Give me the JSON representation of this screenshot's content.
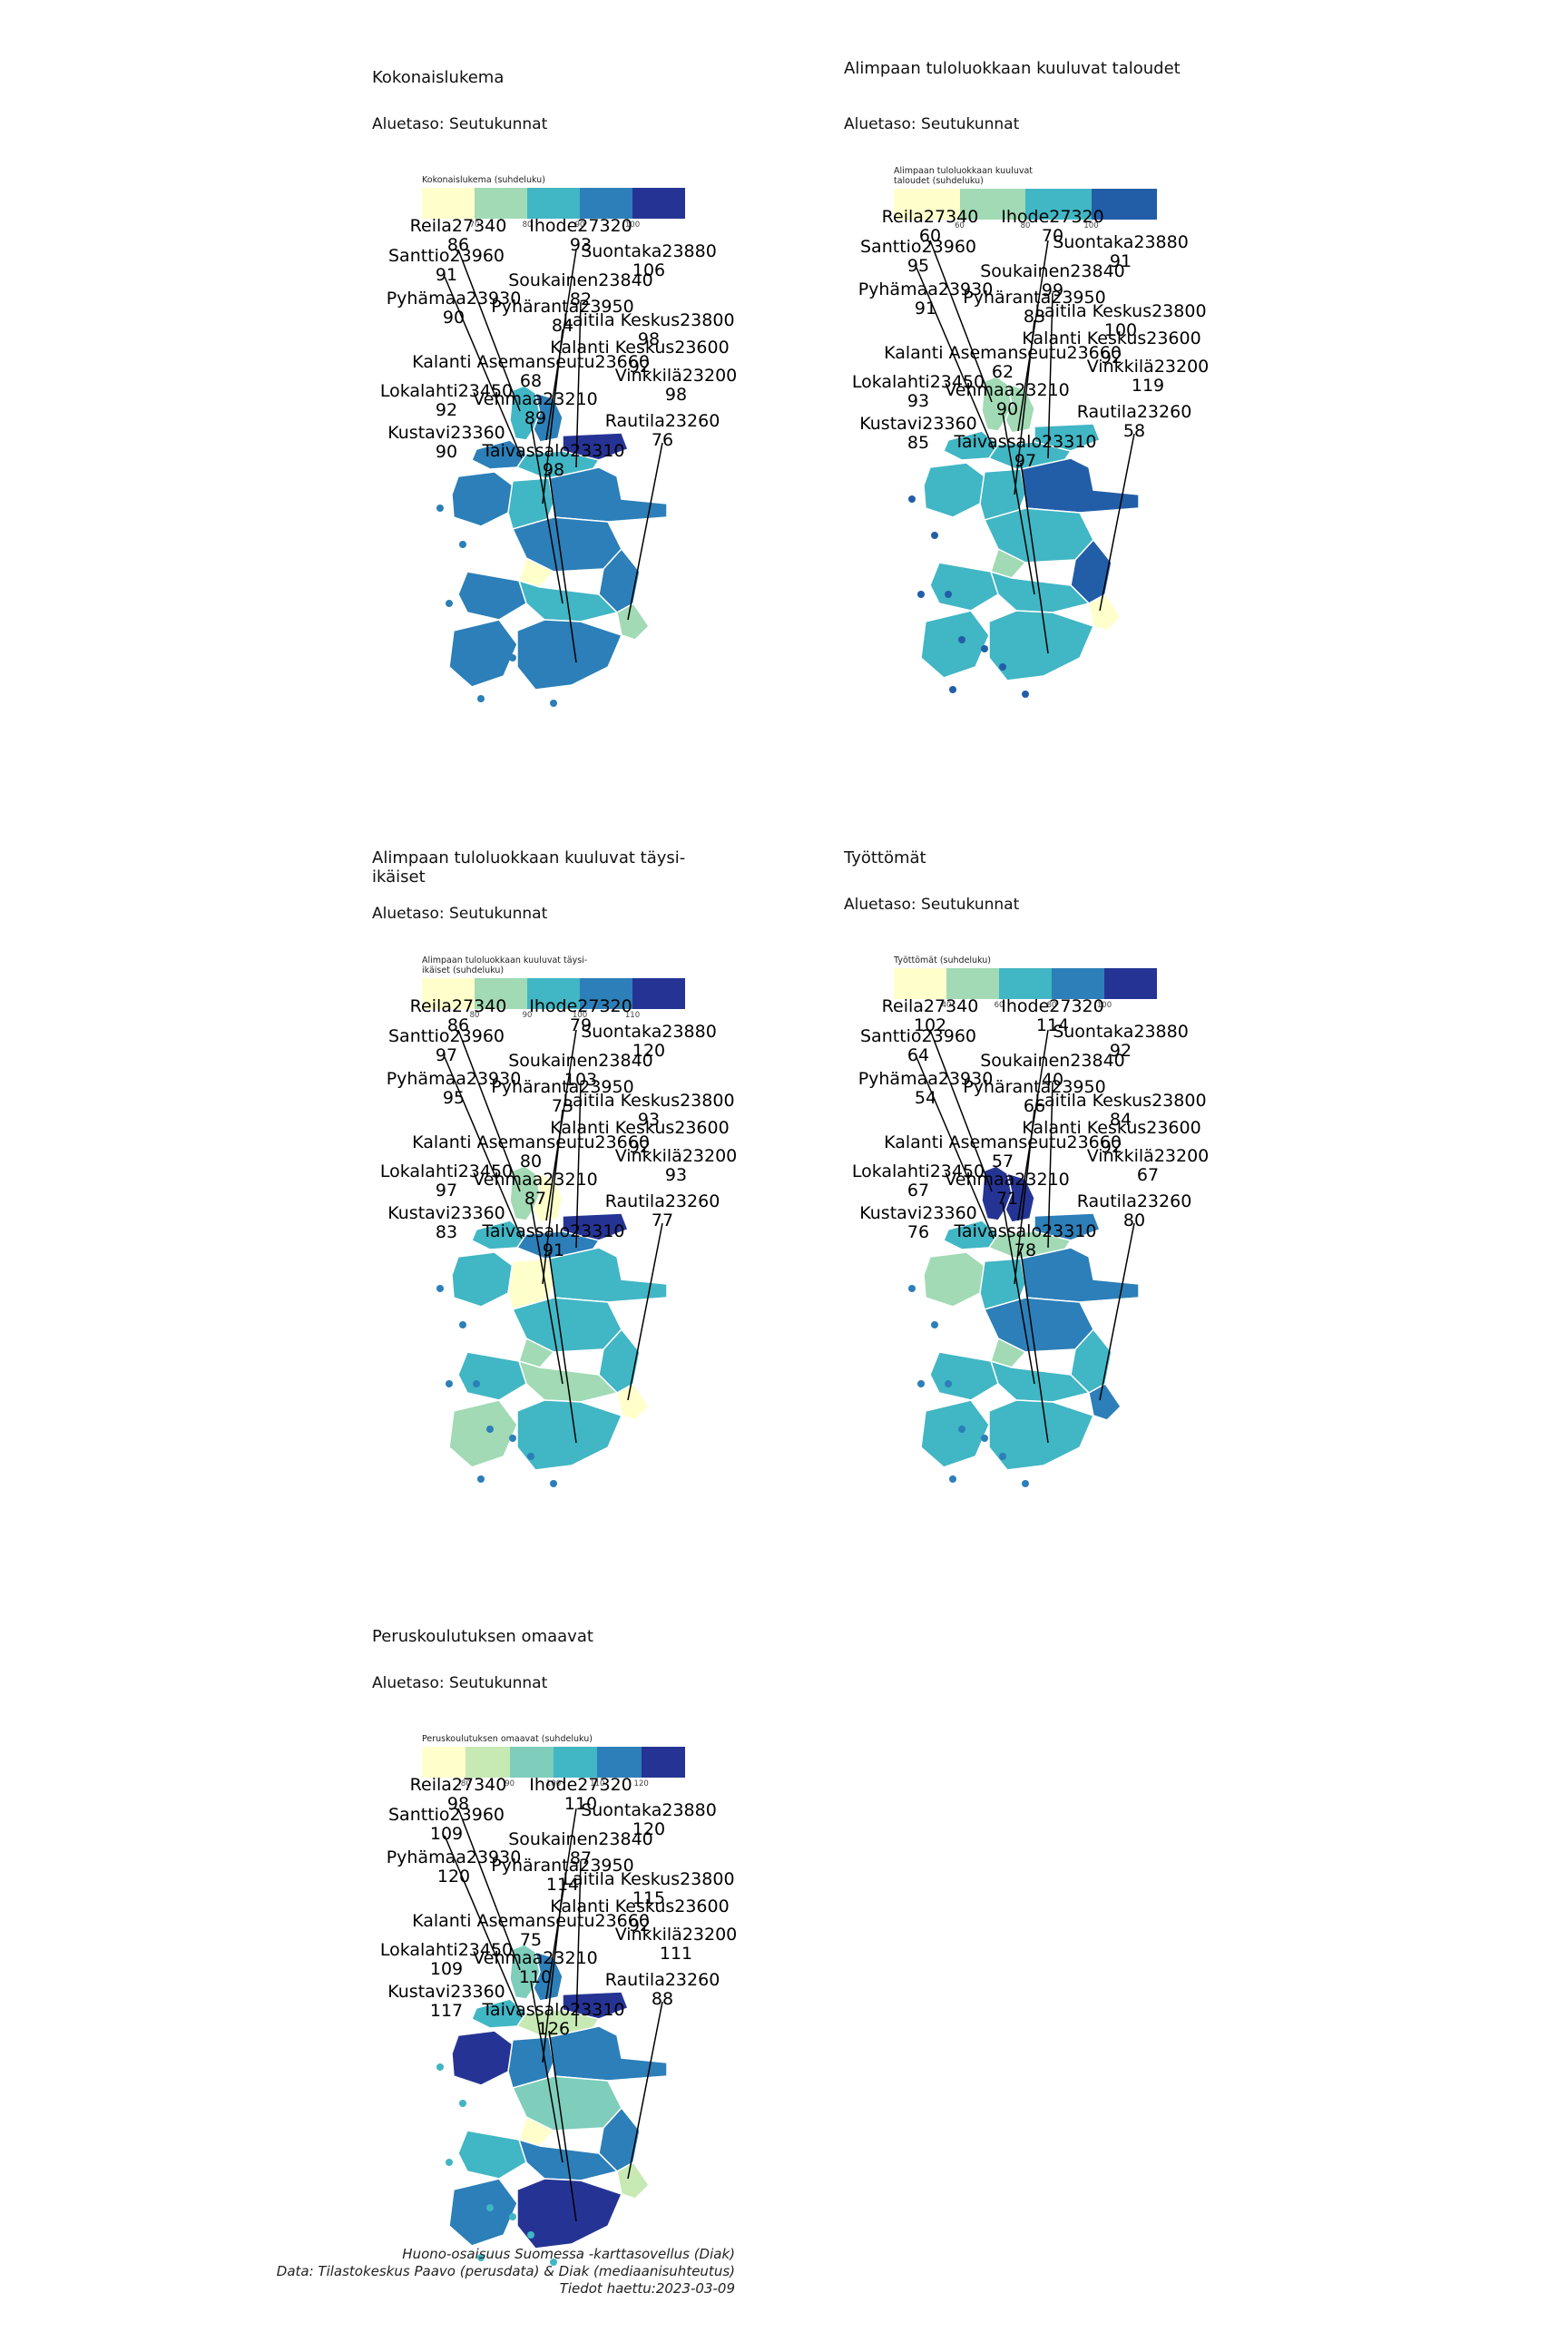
{
  "panels": [
    {
      "title": "Kokonaislukema",
      "subtitle": "Aluetaso: Seutukunnat",
      "legend_title": "Kokonaislukema (suhdeluku)",
      "legend_colors": [
        "#ffffcc",
        "#a1dab4",
        "#41b6c4",
        "#2c7fb8",
        "#253494"
      ],
      "legend_ticks": [
        "70",
        "80",
        "90",
        "100"
      ],
      "values": {
        "Reila27340": 86,
        "Ihode27320": 93,
        "Santtio23960": 91,
        "Suontaka23880": 106,
        "Soukainen23840": 82,
        "Pyhämaa23930": 90,
        "Pyhäranta23950": 84,
        "Laitila Keskus23800": 98,
        "Kalanti Keskus23600": 92,
        "Kalanti Asemanseutu23660": 68,
        "Vinkkilä23200": 98,
        "Lokalahti23450": 92,
        "Vehmaa23210": 89,
        "Rautila23260": 76,
        "Kustavi23360": 90,
        "Taivassalo23310": 98
      }
    },
    {
      "title": "Alimpaan tuloluokkaan kuuluvat taloudet",
      "subtitle": "Aluetaso: Seutukunnat",
      "legend_title": "Alimpaan tuloluokkaan kuuluvat taloudet (suhdeluku)",
      "legend_colors": [
        "#ffffcc",
        "#a1dab4",
        "#41b6c4",
        "#225ea8"
      ],
      "legend_ticks": [
        "60",
        "80",
        "100"
      ],
      "values": {
        "Reila27340": 60,
        "Ihode27320": 70,
        "Santtio23960": 95,
        "Suontaka23880": 91,
        "Soukainen23840": 99,
        "Pyhämaa23930": 91,
        "Pyhäranta23950": 83,
        "Laitila Keskus23800": 100,
        "Kalanti Keskus23600": 92,
        "Kalanti Asemanseutu23660": 62,
        "Vinkkilä23200": 119,
        "Lokalahti23450": 93,
        "Vehmaa23210": 90,
        "Rautila23260": 58,
        "Kustavi23360": 85,
        "Taivassalo23310": 97
      }
    },
    {
      "title": "Alimpaan tuloluokkaan kuuluvat täysi-ikäiset",
      "subtitle": "Aluetaso: Seutukunnat",
      "legend_title": "Alimpaan tuloluokkaan kuuluvat täysi-ikäiset (suhdeluku)",
      "legend_colors": [
        "#ffffcc",
        "#a1dab4",
        "#41b6c4",
        "#2c7fb8",
        "#253494"
      ],
      "legend_ticks": [
        "80",
        "90",
        "100",
        "110"
      ],
      "values": {
        "Reila27340": 86,
        "Ihode27320": 79,
        "Santtio23960": 97,
        "Suontaka23880": 120,
        "Soukainen23840": 103,
        "Pyhämaa23930": 95,
        "Pyhäranta23950": 73,
        "Laitila Keskus23800": 93,
        "Kalanti Keskus23600": 92,
        "Kalanti Asemanseutu23660": 80,
        "Vinkkilä23200": 93,
        "Lokalahti23450": 97,
        "Vehmaa23210": 87,
        "Rautila23260": 77,
        "Kustavi23360": 83,
        "Taivassalo23310": 91
      }
    },
    {
      "title": "Työttömät",
      "subtitle": "Aluetaso: Seutukunnat",
      "legend_title": "Työttömät (suhdeluku)",
      "legend_colors": [
        "#ffffcc",
        "#a1dab4",
        "#41b6c4",
        "#2c7fb8",
        "#253494"
      ],
      "legend_ticks": [
        "40",
        "60",
        "80",
        "100"
      ],
      "values": {
        "Reila27340": 102,
        "Ihode27320": 114,
        "Santtio23960": 64,
        "Suontaka23880": 92,
        "Soukainen23840": 40,
        "Pyhämaa23930": 54,
        "Pyhäranta23950": 66,
        "Laitila Keskus23800": 84,
        "Kalanti Keskus23600": 92,
        "Kalanti Asemanseutu23660": 57,
        "Vinkkilä23200": 67,
        "Lokalahti23450": 67,
        "Vehmaa23210": 71,
        "Rautila23260": 80,
        "Kustavi23360": 76,
        "Taivassalo23310": 78
      }
    },
    {
      "title": "Peruskoulutuksen omaavat",
      "subtitle": "Aluetaso: Seutukunnat",
      "legend_title": "Peruskoulutuksen omaavat (suhdeluku)",
      "legend_colors": [
        "#ffffcc",
        "#c7e9b4",
        "#7fcdbb",
        "#41b6c4",
        "#2c7fb8",
        "#253494"
      ],
      "legend_ticks": [
        "80",
        "90",
        "100",
        "110",
        "120"
      ],
      "values": {
        "Reila27340": 98,
        "Ihode27320": 110,
        "Santtio23960": 109,
        "Suontaka23880": 120,
        "Soukainen23840": 87,
        "Pyhämaa23930": 120,
        "Pyhäranta23950": 114,
        "Laitila Keskus23800": 115,
        "Kalanti Keskus23600": 92,
        "Kalanti Asemanseutu23660": 75,
        "Vinkkilä23200": 111,
        "Lokalahti23450": 109,
        "Vehmaa23210": 110,
        "Rautila23260": 88,
        "Kustavi23360": 117,
        "Taivassalo23310": 126
      }
    }
  ],
  "caption": {
    "line1": "Huono-osaisuus Suomessa -karttasovellus (Diak)",
    "line2": "Data: Tilastokeskus Paavo (perusdata) & Diak (mediaanisuhteutus)",
    "line3": "Tiedot haettu:2023-03-09"
  }
}
